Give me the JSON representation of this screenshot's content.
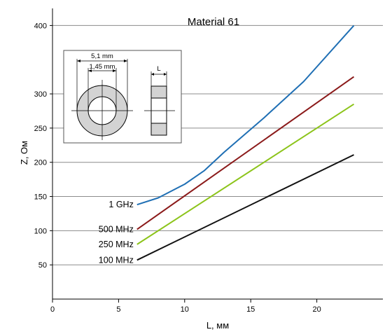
{
  "chart_data": {
    "type": "line",
    "title": "Material 61",
    "xlabel": "L, мм",
    "ylabel": "Z, Ом",
    "xlim": [
      0,
      25
    ],
    "ylim": [
      0,
      425
    ],
    "x_ticks": [
      0,
      5,
      10,
      15,
      20
    ],
    "y_ticks": [
      50,
      100,
      150,
      200,
      250,
      300,
      400
    ],
    "grid": "horizontal",
    "legend": "inline-left",
    "series": [
      {
        "name": "1 GHz",
        "color": "#1f6fb4",
        "points": [
          [
            6.4,
            138
          ],
          [
            8,
            148
          ],
          [
            10,
            168
          ],
          [
            11.5,
            188
          ],
          [
            13,
            215
          ],
          [
            16,
            265
          ],
          [
            19,
            318
          ],
          [
            22.8,
            400
          ]
        ]
      },
      {
        "name": "500 MHz",
        "color": "#8b1a1a",
        "points": [
          [
            6.4,
            102
          ],
          [
            22.8,
            325
          ]
        ]
      },
      {
        "name": "250 MHz",
        "color": "#8cc41a",
        "points": [
          [
            6.4,
            80
          ],
          [
            22.8,
            285
          ]
        ]
      },
      {
        "name": "100 MHz",
        "color": "#111111",
        "points": [
          [
            6.4,
            57
          ],
          [
            22.8,
            211
          ]
        ]
      }
    ],
    "inset": {
      "outer_diameter_label": "5,1 mm",
      "inner_diameter_label": "1,45 mm",
      "length_label": "L"
    }
  }
}
